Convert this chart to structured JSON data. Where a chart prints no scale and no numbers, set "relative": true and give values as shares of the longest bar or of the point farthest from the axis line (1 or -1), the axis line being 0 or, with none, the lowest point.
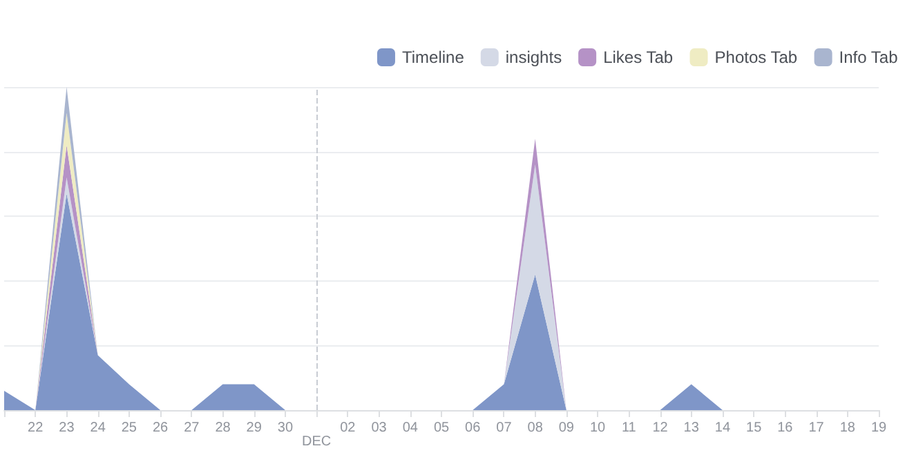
{
  "chart_data": {
    "type": "area",
    "stacked": true,
    "relative": true,
    "grid": "y",
    "legend": "top right",
    "categories": [
      null,
      "22",
      "23",
      "24",
      "25",
      "26",
      "27",
      "28",
      "29",
      "30",
      "DEC",
      "02",
      "03",
      "04",
      "05",
      "06",
      "07",
      "08",
      "09",
      "10",
      "11",
      "12",
      "13",
      "14",
      "15",
      "16",
      "17",
      "18",
      "19"
    ],
    "series": [
      {
        "name": "Timeline",
        "color": "#7f96c8",
        "values": [
          0.06,
          0,
          0.67,
          0.17,
          0.08,
          0,
          0,
          0.08,
          0.08,
          0,
          0,
          0,
          0,
          0,
          0,
          0,
          0.08,
          0.42,
          0,
          0,
          0,
          0,
          0.08,
          0,
          0,
          0,
          0,
          0,
          0
        ]
      },
      {
        "name": "insights",
        "color": "#d4d9e6",
        "values": [
          0,
          0,
          0.05,
          0,
          0,
          0,
          0,
          0,
          0,
          0,
          0,
          0,
          0,
          0,
          0,
          0,
          0,
          0.34,
          0,
          0,
          0,
          0,
          0,
          0,
          0,
          0,
          0,
          0,
          0
        ]
      },
      {
        "name": "Likes Tab",
        "color": "#b592c6",
        "values": [
          0,
          0,
          0.1,
          0,
          0,
          0,
          0,
          0,
          0,
          0,
          0,
          0,
          0,
          0,
          0,
          0,
          0,
          0.08,
          0,
          0,
          0,
          0,
          0,
          0,
          0,
          0,
          0,
          0,
          0
        ]
      },
      {
        "name": "Photos Tab",
        "color": "#efecc3",
        "values": [
          0,
          0,
          0.1,
          0,
          0,
          0,
          0,
          0,
          0,
          0,
          0,
          0,
          0,
          0,
          0,
          0,
          0,
          0,
          0,
          0,
          0,
          0,
          0,
          0,
          0,
          0,
          0,
          0,
          0
        ]
      },
      {
        "name": "Info Tab",
        "color": "#a9b5cf",
        "values": [
          0,
          0,
          0.08,
          0,
          0,
          0,
          0,
          0,
          0,
          0,
          0,
          0,
          0,
          0,
          0,
          0,
          0,
          0,
          0,
          0,
          0,
          0,
          0,
          0,
          0,
          0,
          0,
          0,
          0
        ]
      }
    ],
    "ref_lines": [
      {
        "axis": "x",
        "value": "DEC",
        "line_style": "dashed",
        "color": "#c8ccd3"
      }
    ]
  }
}
